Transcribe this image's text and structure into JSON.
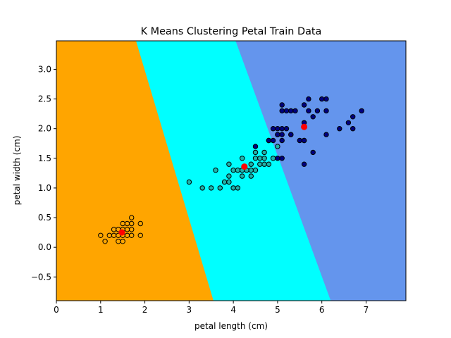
{
  "chart_data": {
    "type": "scatter",
    "title": "K Means Clustering Petal Train Data",
    "xlabel": "petal length (cm)",
    "ylabel": "petal width (cm)",
    "xlim": [
      0,
      7.9
    ],
    "ylim": [
      -0.9,
      3.48
    ],
    "xticks": [
      0,
      1,
      2,
      3,
      4,
      5,
      6,
      7
    ],
    "yticks": [
      -0.5,
      0.0,
      0.5,
      1.0,
      1.5,
      2.0,
      2.5,
      3.0
    ],
    "xtick_labels": [
      "0",
      "1",
      "2",
      "3",
      "4",
      "5",
      "6",
      "7"
    ],
    "ytick_labels": [
      "−0.5",
      "0.0",
      "0.5",
      "1.0",
      "1.5",
      "2.0",
      "2.5",
      "3.0"
    ],
    "grid": false,
    "regions": [
      {
        "color": "#ffa500",
        "boundary_top": [
          1.8,
          3.48
        ],
        "boundary_bottom": [
          3.55,
          -0.9
        ]
      },
      {
        "color": "#00ffff",
        "boundary_top": [
          4.05,
          3.48
        ],
        "boundary_bottom": [
          6.2,
          -0.9
        ]
      },
      {
        "color": "#6495ed"
      }
    ],
    "series": [
      {
        "point_color": "#ffa500",
        "points": [
          [
            1.0,
            0.2
          ],
          [
            1.1,
            0.1
          ],
          [
            1.2,
            0.2
          ],
          [
            1.3,
            0.2
          ],
          [
            1.3,
            0.3
          ],
          [
            1.4,
            0.1
          ],
          [
            1.4,
            0.2
          ],
          [
            1.4,
            0.3
          ],
          [
            1.5,
            0.1
          ],
          [
            1.5,
            0.2
          ],
          [
            1.5,
            0.4
          ],
          [
            1.6,
            0.2
          ],
          [
            1.6,
            0.4
          ],
          [
            1.7,
            0.2
          ],
          [
            1.7,
            0.3
          ],
          [
            1.7,
            0.4
          ],
          [
            1.7,
            0.5
          ],
          [
            1.9,
            0.2
          ],
          [
            1.9,
            0.4
          ],
          [
            1.5,
            0.3
          ],
          [
            1.6,
            0.3
          ]
        ]
      },
      {
        "point_color": "#20b2aa",
        "points": [
          [
            3.0,
            1.1
          ],
          [
            3.3,
            1.0
          ],
          [
            3.5,
            1.0
          ],
          [
            3.6,
            1.3
          ],
          [
            3.7,
            1.0
          ],
          [
            3.8,
            1.1
          ],
          [
            3.9,
            1.1
          ],
          [
            3.9,
            1.2
          ],
          [
            3.9,
            1.4
          ],
          [
            4.0,
            1.0
          ],
          [
            4.0,
            1.3
          ],
          [
            4.1,
            1.0
          ],
          [
            4.1,
            1.3
          ],
          [
            4.2,
            1.2
          ],
          [
            4.2,
            1.3
          ],
          [
            4.2,
            1.5
          ],
          [
            4.3,
            1.3
          ],
          [
            4.4,
            1.3
          ],
          [
            4.4,
            1.4
          ],
          [
            4.5,
            1.5
          ],
          [
            4.5,
            1.6
          ],
          [
            4.6,
            1.4
          ],
          [
            4.6,
            1.5
          ],
          [
            4.7,
            1.4
          ],
          [
            4.7,
            1.5
          ],
          [
            4.7,
            1.6
          ],
          [
            4.8,
            1.4
          ],
          [
            4.9,
            1.5
          ],
          [
            5.0,
            1.7
          ],
          [
            4.5,
            1.3
          ],
          [
            4.4,
            1.2
          ],
          [
            4.8,
            1.8
          ]
        ]
      },
      {
        "point_color": "#000080",
        "points": [
          [
            4.5,
            1.7
          ],
          [
            4.8,
            1.8
          ],
          [
            4.9,
            1.8
          ],
          [
            4.9,
            2.0
          ],
          [
            5.0,
            1.5
          ],
          [
            5.0,
            1.9
          ],
          [
            5.0,
            2.0
          ],
          [
            5.1,
            1.5
          ],
          [
            5.1,
            1.8
          ],
          [
            5.1,
            1.9
          ],
          [
            5.1,
            2.0
          ],
          [
            5.1,
            2.3
          ],
          [
            5.1,
            2.4
          ],
          [
            5.2,
            2.0
          ],
          [
            5.2,
            2.3
          ],
          [
            5.3,
            1.9
          ],
          [
            5.3,
            2.3
          ],
          [
            5.4,
            2.3
          ],
          [
            5.5,
            1.8
          ],
          [
            5.6,
            1.4
          ],
          [
            5.6,
            1.8
          ],
          [
            5.6,
            2.1
          ],
          [
            5.6,
            2.4
          ],
          [
            5.7,
            2.3
          ],
          [
            5.8,
            1.6
          ],
          [
            5.8,
            2.2
          ],
          [
            5.9,
            2.3
          ],
          [
            6.0,
            2.5
          ],
          [
            6.1,
            1.9
          ],
          [
            6.1,
            2.3
          ],
          [
            6.1,
            2.5
          ],
          [
            6.4,
            2.0
          ],
          [
            6.6,
            2.1
          ],
          [
            6.7,
            2.0
          ],
          [
            6.7,
            2.2
          ],
          [
            6.9,
            2.3
          ],
          [
            5.6,
            1.8
          ],
          [
            5.7,
            2.5
          ],
          [
            5.3,
            1.9
          ],
          [
            5.0,
            1.9
          ]
        ]
      }
    ],
    "centroids": [
      [
        1.48,
        0.25
      ],
      [
        4.25,
        1.36
      ],
      [
        5.6,
        2.03
      ]
    ],
    "centroid_color": "#ff0000"
  }
}
